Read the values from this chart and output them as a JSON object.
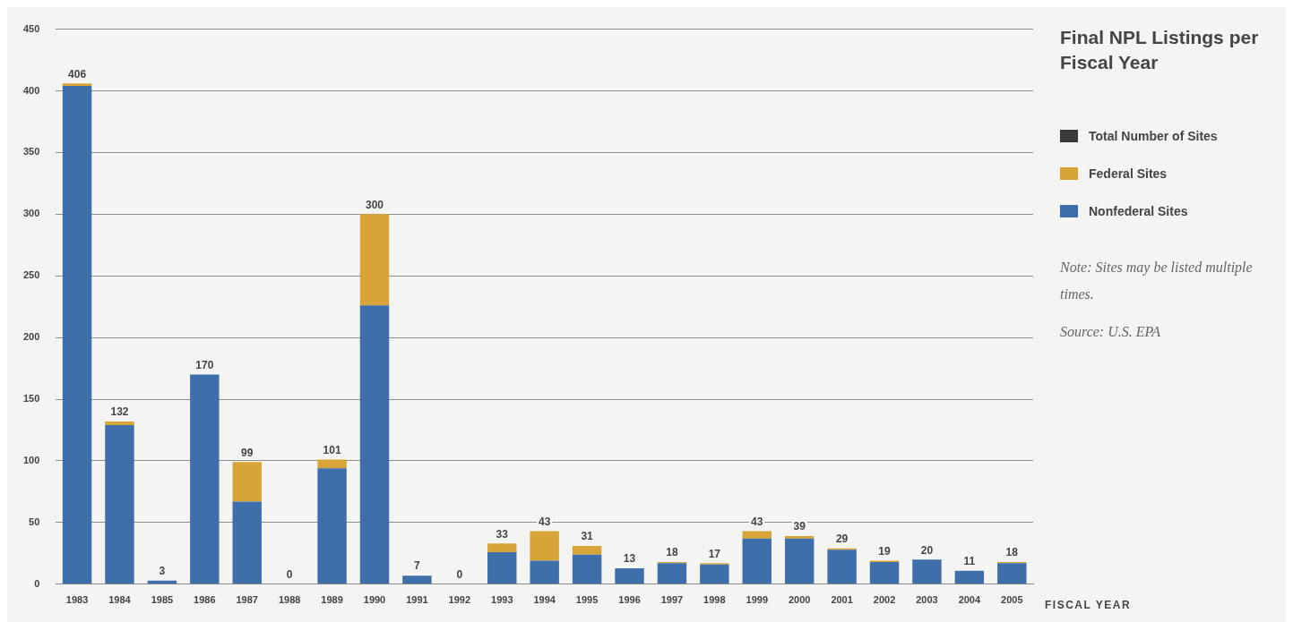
{
  "chart_data": {
    "type": "bar",
    "title": "Final NPL Listings per Fiscal Year",
    "xlabel": "FISCAL YEAR",
    "categories": [
      "1983",
      "1984",
      "1985",
      "1986",
      "1987",
      "1988",
      "1989",
      "1990",
      "1991",
      "1992",
      "1993",
      "1994",
      "1995",
      "1996",
      "1997",
      "1998",
      "1999",
      "2000",
      "2001",
      "2002",
      "2003",
      "2004",
      "2005"
    ],
    "stacked": true,
    "series": [
      {
        "name": "Nonfederal Sites",
        "color": "#3f6faa",
        "values": [
          404,
          129,
          3,
          170,
          67,
          0,
          94,
          226,
          7,
          0,
          26,
          19,
          24,
          13,
          17,
          16,
          37,
          37,
          28,
          18,
          20,
          11,
          17
        ]
      },
      {
        "name": "Federal Sites",
        "color": "#d9a437",
        "values": [
          2,
          3,
          0,
          0,
          32,
          0,
          7,
          74,
          0,
          0,
          7,
          24,
          7,
          0,
          1,
          1,
          6,
          2,
          1,
          1,
          0,
          0,
          1
        ]
      },
      {
        "name": "Total Number of Sites",
        "color": "#3a3a3a",
        "values": [
          null,
          null,
          null,
          null,
          null,
          null,
          null,
          null,
          null,
          null,
          null,
          null,
          null,
          null,
          null,
          null,
          null,
          null,
          null,
          null,
          null,
          null,
          null
        ]
      }
    ],
    "totals": [
      "406",
      "132",
      "3",
      "170",
      "99",
      "0",
      "101",
      "300",
      "7",
      "0",
      "33",
      "43",
      "31",
      "13",
      "18",
      "17",
      "43",
      "39",
      "29",
      "19",
      "20",
      "11",
      "18"
    ],
    "ylim": [
      0,
      450
    ],
    "yticks": [
      0,
      50,
      100,
      150,
      200,
      250,
      300,
      350,
      400,
      450
    ],
    "grid": "y",
    "legend": "right",
    "annotations": [
      "Note: Sites may be listed multiple times.",
      "Source: U.S. EPA"
    ]
  }
}
